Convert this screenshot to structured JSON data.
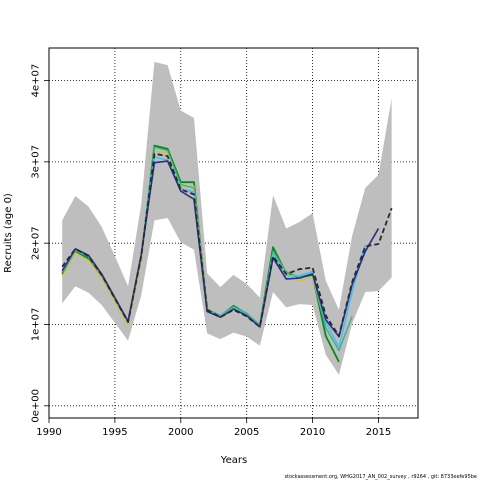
{
  "chart_data": {
    "type": "line",
    "title": "",
    "xlabel": "Years",
    "ylabel": "Recruits (age 0)",
    "xlim": [
      1990,
      2018
    ],
    "ylim": [
      -1500000,
      44000000
    ],
    "x_ticks": [
      1990,
      1995,
      2000,
      2005,
      2010,
      2015
    ],
    "x_tick_labels": [
      "1990",
      "1995",
      "2000",
      "2005",
      "2010",
      "2015"
    ],
    "y_ticks": [
      0,
      10000000,
      20000000,
      30000000,
      40000000
    ],
    "y_tick_labels": [
      "0e+00",
      "1e+07",
      "2e+07",
      "3e+07",
      "4e+07"
    ],
    "grid": true,
    "footer": "stockassessment.org, WHG2017_AN_002_survey , r9264 , git: 8733eefe95be",
    "band": {
      "color": "#bebebe",
      "x": [
        1991,
        1992,
        1993,
        1994,
        1995,
        1996,
        1997,
        1998,
        1999,
        2000,
        2001,
        2002,
        2003,
        2004,
        2005,
        2006,
        2007,
        2008,
        2009,
        2010,
        2011,
        2012,
        2013,
        2014,
        2015,
        2016
      ],
      "lower": [
        12600000,
        14700000,
        13900000,
        12400000,
        10200000,
        8000000,
        13600000,
        22800000,
        23100000,
        20100000,
        19200000,
        8900000,
        8200000,
        9000000,
        8500000,
        7400000,
        14000000,
        12100000,
        12500000,
        12400000,
        6300000,
        3800000,
        10100000,
        14000000,
        14100000,
        15800000
      ],
      "upper": [
        22800000,
        25800000,
        24500000,
        22000000,
        18400000,
        14700000,
        24800000,
        42300000,
        41900000,
        36300000,
        35400000,
        16300000,
        14600000,
        16100000,
        15000000,
        13300000,
        25900000,
        21800000,
        22600000,
        23700000,
        15400000,
        11800000,
        20900000,
        26800000,
        28400000,
        37800000
      ]
    },
    "series": [
      {
        "color": "#008c1a",
        "width": 1.8,
        "dash": "",
        "x": [
          1991,
          1992,
          1993,
          1994,
          1995,
          1996,
          1997,
          1998,
          1999,
          2000,
          2001,
          2002,
          2003,
          2004,
          2005,
          2006,
          2007,
          2008,
          2009,
          2010,
          2011,
          2012
        ],
        "values": [
          16200000,
          19000000,
          18100000,
          15900000,
          13000000,
          10200000,
          18200000,
          32000000,
          31600000,
          27500000,
          27500000,
          11800000,
          11000000,
          12300000,
          11300000,
          9900000,
          19500000,
          16300000,
          15800000,
          16100000,
          8600000,
          5400000
        ]
      },
      {
        "color": "#d4c03c",
        "width": 1.4,
        "dash": "",
        "x": [
          1991,
          1992,
          1993,
          1994,
          1995,
          1996,
          1997,
          1998,
          1999,
          2000,
          2001,
          2002,
          2003,
          2004,
          2005,
          2006,
          2007,
          2008,
          2009,
          2010,
          2011
        ],
        "values": [
          15900000,
          18800000,
          17900000,
          15700000,
          12800000,
          10000000,
          17900000,
          31300000,
          31100000,
          27000000,
          27000000,
          12100000,
          10800000,
          12000000,
          11100000,
          9800000,
          18800000,
          16300000,
          15300000,
          15900000,
          9700000
        ]
      },
      {
        "color": "#3cb38a",
        "width": 1.4,
        "dash": "",
        "x": [
          1991,
          1992,
          1993,
          1994,
          1995,
          1996,
          1997,
          1998,
          1999,
          2000,
          2001,
          2002,
          2003,
          2004,
          2005,
          2006,
          2007,
          2008,
          2009,
          2010,
          2011,
          2012,
          2013
        ],
        "values": [
          16400000,
          19100000,
          18300000,
          16000000,
          13100000,
          10300000,
          18400000,
          31800000,
          31400000,
          27200000,
          26800000,
          11900000,
          11100000,
          12200000,
          11400000,
          9900000,
          19000000,
          16500000,
          15800000,
          16300000,
          9600000,
          6800000,
          11000000
        ]
      },
      {
        "color": "#4cc0e8",
        "width": 1.6,
        "dash": "",
        "x": [
          1991,
          1992,
          1993,
          1994,
          1995,
          1996,
          1997,
          1998,
          1999,
          2000,
          2001,
          2002,
          2003,
          2004,
          2005,
          2006,
          2007,
          2008,
          2009,
          2010,
          2011,
          2012,
          2013,
          2014
        ],
        "values": [
          16500000,
          19200000,
          18400000,
          16100000,
          13200000,
          10400000,
          18500000,
          30600000,
          30200000,
          26700000,
          26300000,
          11700000,
          11000000,
          12000000,
          11200000,
          9800000,
          18600000,
          16000000,
          16000000,
          16500000,
          10300000,
          7200000,
          14000000,
          19800000
        ]
      },
      {
        "color": "#2b2b8c",
        "width": 1.6,
        "dash": "",
        "x": [
          1991,
          1992,
          1993,
          1994,
          1995,
          1996,
          1997,
          1998,
          1999,
          2000,
          2001,
          2002,
          2003,
          2004,
          2005,
          2006,
          2007,
          2008,
          2009,
          2010,
          2011,
          2012,
          2013,
          2014,
          2015
        ],
        "values": [
          16600000,
          19300000,
          18500000,
          16200000,
          13300000,
          10400000,
          18600000,
          29900000,
          30100000,
          26400000,
          25400000,
          11600000,
          10900000,
          11900000,
          11100000,
          9700000,
          18200000,
          15600000,
          15700000,
          16200000,
          10600000,
          8500000,
          14900000,
          19000000,
          21800000
        ]
      },
      {
        "color": "#2a2a2a",
        "width": 1.8,
        "dash": "5,3",
        "x": [
          1991,
          1992,
          1993,
          1994,
          1995,
          1996,
          1997,
          1998,
          1999,
          2000,
          2001,
          2002,
          2003,
          2004,
          2005,
          2006,
          2007,
          2008,
          2009,
          2010,
          2011,
          2012,
          2013,
          2014,
          2015,
          2016
        ],
        "values": [
          17100000,
          19300000,
          18400000,
          16100000,
          13200000,
          10300000,
          18400000,
          31000000,
          30700000,
          26600000,
          26000000,
          11800000,
          10900000,
          11800000,
          11000000,
          9700000,
          18400000,
          16200000,
          16800000,
          17000000,
          11100000,
          8600000,
          15200000,
          19600000,
          19900000,
          24300000
        ]
      }
    ]
  }
}
